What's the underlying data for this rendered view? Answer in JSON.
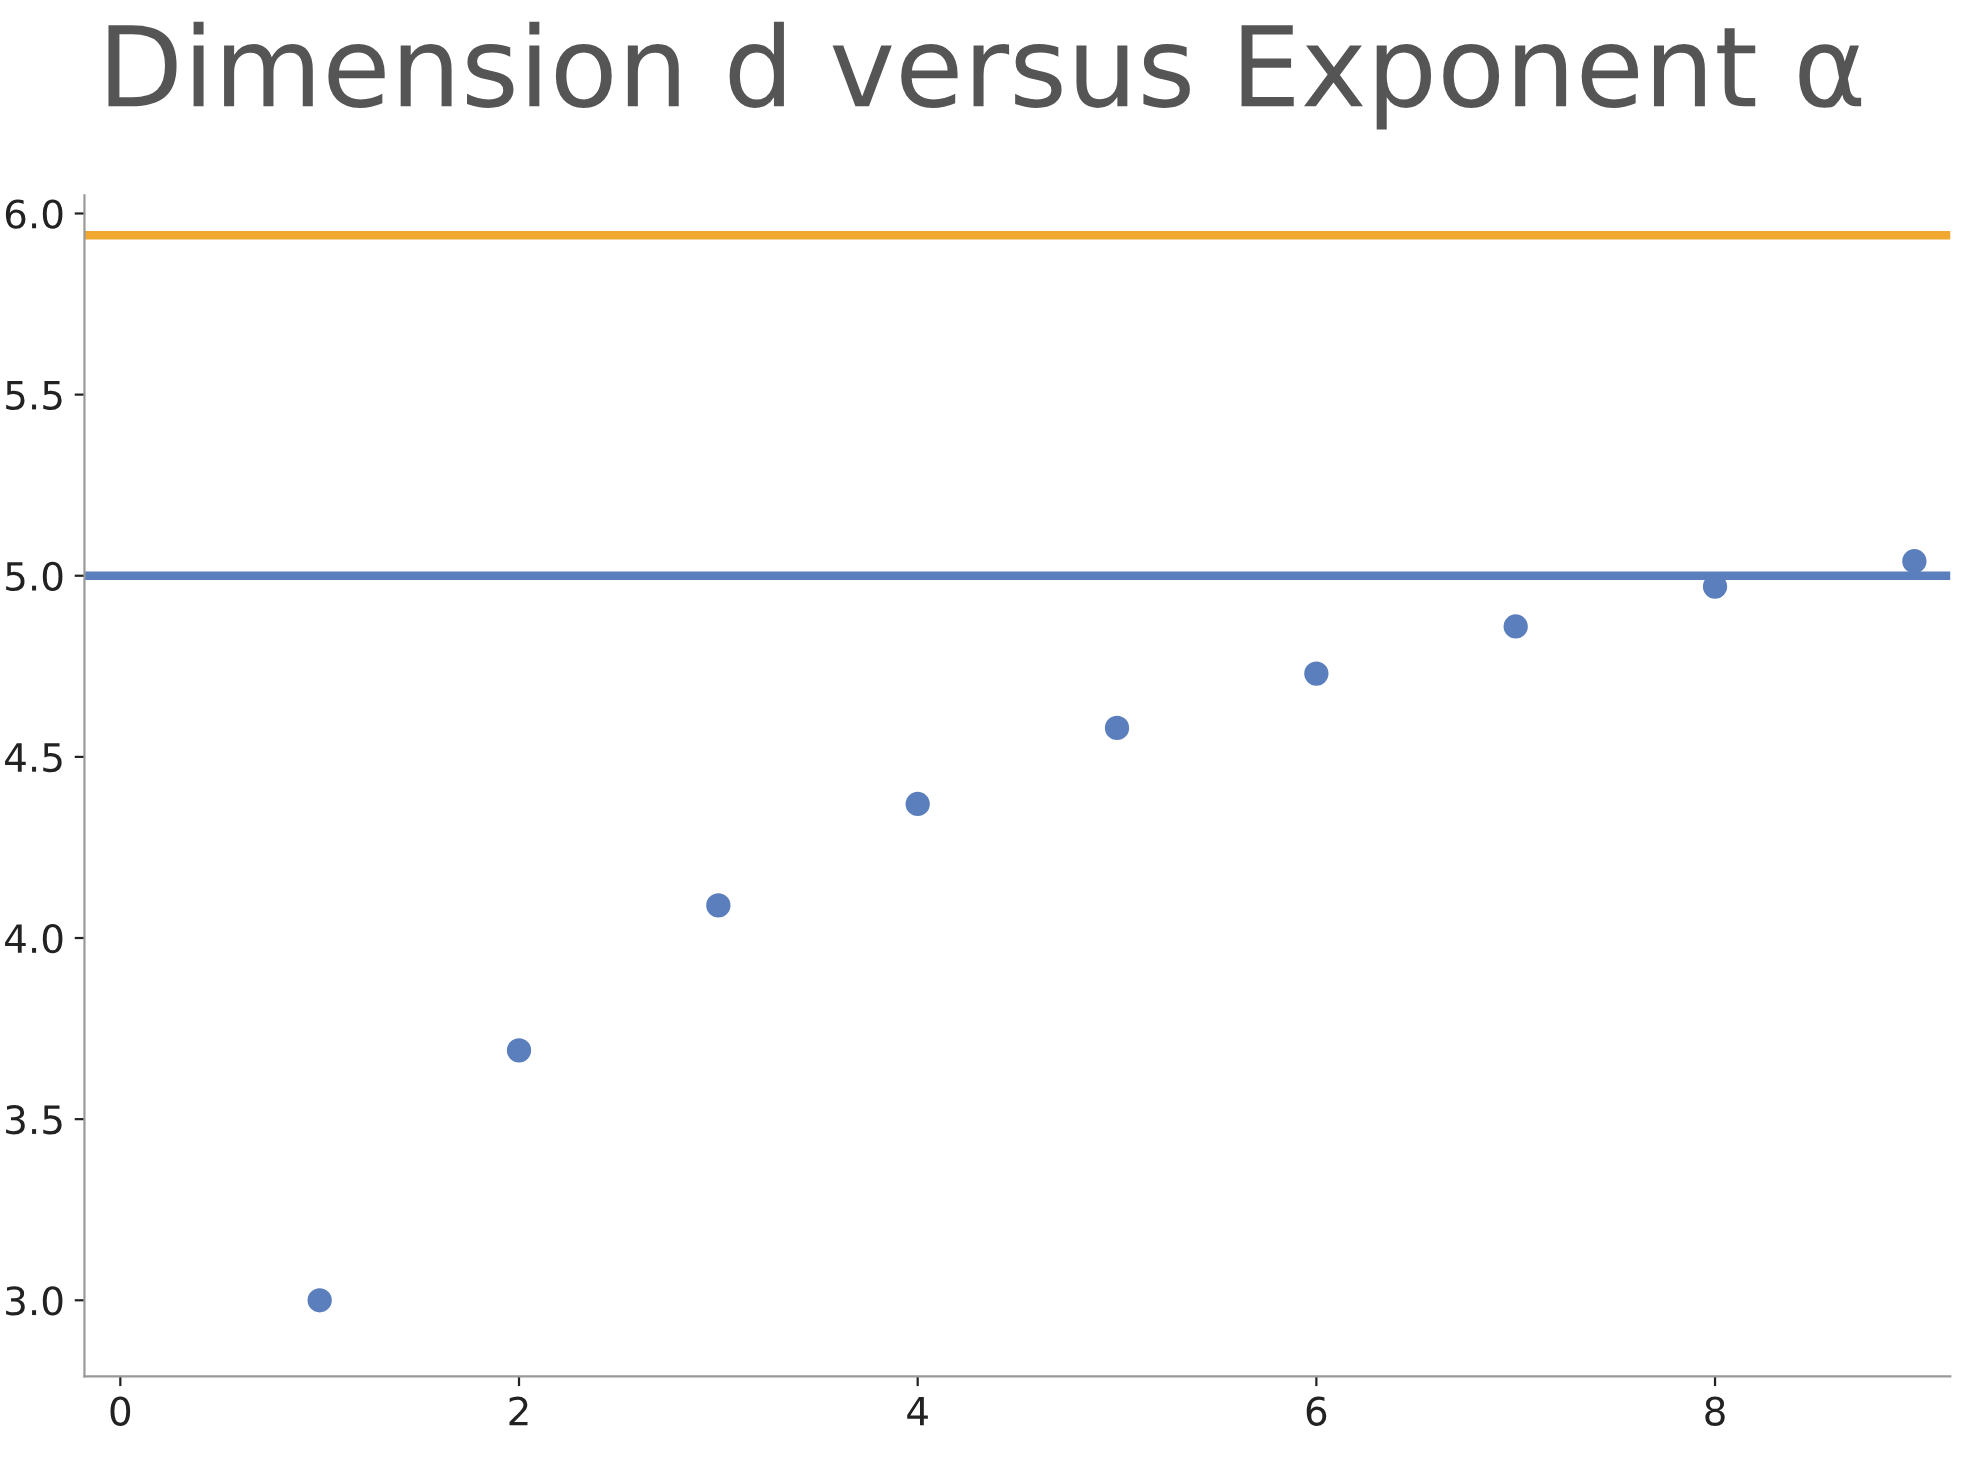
{
  "chart_data": {
    "type": "scatter",
    "title": "Dimension d versus Exponent α",
    "x": [
      1,
      2,
      3,
      4,
      5,
      6,
      7,
      8,
      9
    ],
    "series": [
      {
        "color": "#5b7fbd",
        "values": [
          3.0,
          3.69,
          4.09,
          4.37,
          4.58,
          4.73,
          4.86,
          4.97,
          5.04
        ]
      }
    ],
    "marker": "circle",
    "ref_lines": [
      {
        "axis": "y",
        "value": 5.94,
        "color": "#f0a830"
      },
      {
        "axis": "y",
        "value": 5.0,
        "color": "#5b7fbd"
      }
    ],
    "xlim": [
      -0.18,
      9.18
    ],
    "ylim": [
      2.79,
      6.05
    ],
    "xticks": [
      0,
      2,
      4,
      6,
      8
    ],
    "yticks": [
      {
        "value": 3,
        "label": "3.0"
      },
      {
        "value": 3.5,
        "label": "3.5"
      },
      {
        "value": 4,
        "label": "4.0"
      },
      {
        "value": 4.5,
        "label": "4.5"
      },
      {
        "value": 5,
        "label": "5.0"
      },
      {
        "value": 5.5,
        "label": "5.5"
      },
      {
        "value": 6,
        "label": "6.0"
      }
    ],
    "grid": false,
    "legend": false
  }
}
